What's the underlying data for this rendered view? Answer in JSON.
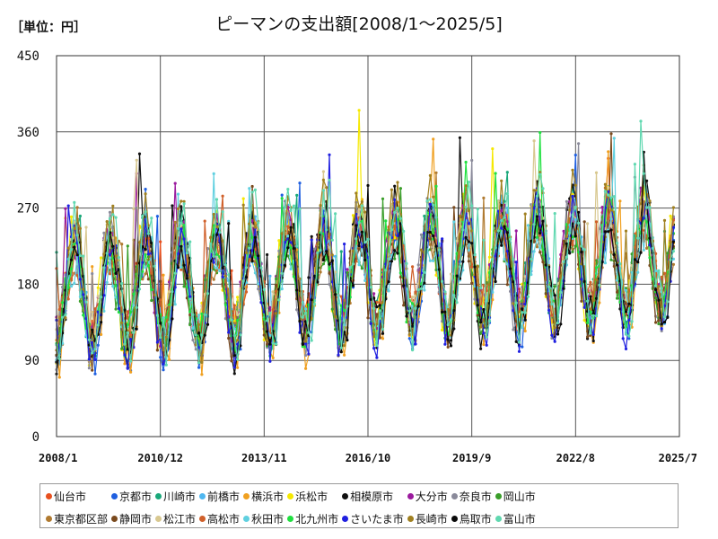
{
  "header": {
    "unit_label": "［単位：円］",
    "title": "ピーマンの支出額[2008/1～2025/5]"
  },
  "chart_data": {
    "type": "line",
    "x_start": "2008-01",
    "x_end": "2025-07",
    "ylim": [
      0,
      450
    ],
    "yticks": [
      "0",
      "90",
      "180",
      "270",
      "360",
      "450"
    ],
    "xticks": [
      "2008/1",
      "2010/12",
      "2013/11",
      "2016/10",
      "2019/9",
      "2022/8",
      "2025/7"
    ],
    "grid": true,
    "legend_position": "bottom",
    "series": [
      {
        "name": "仙台市",
        "color": "#e8501e"
      },
      {
        "name": "京都市",
        "color": "#1f5fe0"
      },
      {
        "name": "川崎市",
        "color": "#1aa87a"
      },
      {
        "name": "前橋市",
        "color": "#4fb7f0"
      },
      {
        "name": "横浜市",
        "color": "#f0a020"
      },
      {
        "name": "浜松市",
        "color": "#f5e800"
      },
      {
        "name": "相模原市",
        "color": "#111111"
      },
      {
        "name": "大分市",
        "color": "#9b1a9e"
      },
      {
        "name": "奈良市",
        "color": "#8a8a9a"
      },
      {
        "name": "岡山市",
        "color": "#3a9e2a"
      },
      {
        "name": "東京都区部",
        "color": "#b07a30"
      },
      {
        "name": "静岡市",
        "color": "#7a4a1e"
      },
      {
        "name": "松江市",
        "color": "#d8c890"
      },
      {
        "name": "高松市",
        "color": "#d0602a"
      },
      {
        "name": "秋田市",
        "color": "#60d0e0"
      },
      {
        "name": "北九州市",
        "color": "#20e040"
      },
      {
        "name": "さいたま市",
        "color": "#2020e0"
      },
      {
        "name": "長崎市",
        "color": "#a08020"
      },
      {
        "name": "鳥取市",
        "color": "#0a0a0a"
      },
      {
        "name": "富山市",
        "color": "#60d8b0"
      }
    ]
  }
}
